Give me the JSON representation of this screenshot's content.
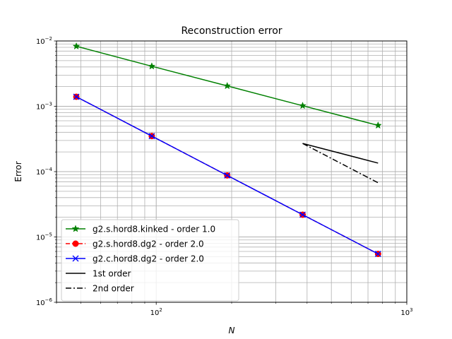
{
  "chart_data": {
    "type": "line",
    "title": "Reconstruction error",
    "xlabel": "N",
    "ylabel": "Error",
    "xscale": "log",
    "yscale": "log",
    "xlim": [
      40,
      1000
    ],
    "ylim": [
      1e-06,
      0.01
    ],
    "grid": "major and minor",
    "legend_position": "lower-left",
    "x_ticks": [
      {
        "value": 100,
        "base": "10",
        "exp": "2"
      },
      {
        "value": 1000,
        "base": "10",
        "exp": "3"
      }
    ],
    "y_ticks": [
      {
        "value": 1e-06,
        "base": "10",
        "exp": "−6"
      },
      {
        "value": 1e-05,
        "base": "10",
        "exp": "−5"
      },
      {
        "value": 0.0001,
        "base": "10",
        "exp": "−4"
      },
      {
        "value": 0.001,
        "base": "10",
        "exp": "−3"
      },
      {
        "value": 0.01,
        "base": "10",
        "exp": "−2"
      }
    ],
    "series": [
      {
        "name": "g2.s.hord8.kinked - order 1.0",
        "color": "#008000",
        "linestyle": "solid",
        "marker": "star",
        "x": [
          48,
          96,
          192,
          384,
          768
        ],
        "y": [
          0.0083,
          0.0041,
          0.00205,
          0.00102,
          0.00051
        ]
      },
      {
        "name": "g2.s.hord8.dg2 - order 2.0",
        "color": "#ff0000",
        "linestyle": "dashed",
        "marker": "circle",
        "x": [
          48,
          96,
          192,
          384,
          768
        ],
        "y": [
          0.0014,
          0.00035,
          8.75e-05,
          2.19e-05,
          5.5e-06
        ]
      },
      {
        "name": "g2.c.hord8.dg2 - order 2.0",
        "color": "#0000ff",
        "linestyle": "solid",
        "marker": "x",
        "x": [
          48,
          96,
          192,
          384,
          768
        ],
        "y": [
          0.0014,
          0.00035,
          8.75e-05,
          2.19e-05,
          5.5e-06
        ]
      },
      {
        "name": "1st order",
        "color": "#000000",
        "linestyle": "solid",
        "marker": "none",
        "x": [
          384,
          768
        ],
        "y": [
          0.00027,
          0.000135
        ]
      },
      {
        "name": "2nd order",
        "color": "#000000",
        "linestyle": "dashdot",
        "marker": "none",
        "x": [
          384,
          768
        ],
        "y": [
          0.00027,
          6.75e-05
        ]
      }
    ]
  }
}
